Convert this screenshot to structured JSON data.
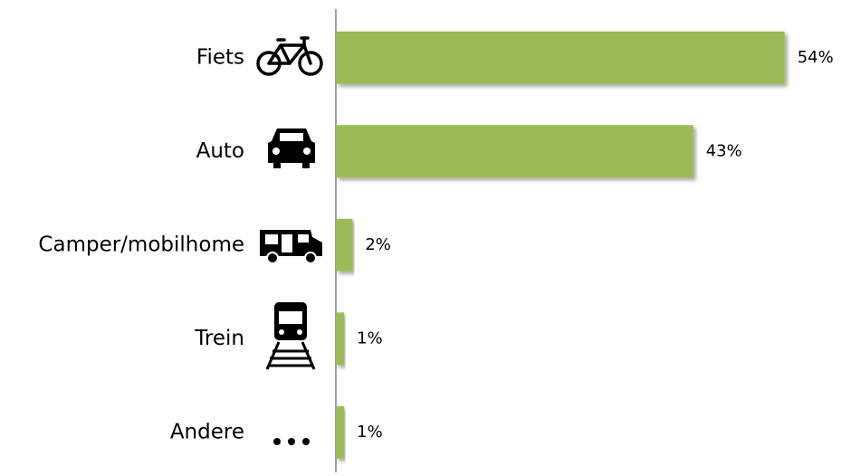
{
  "chart_data": {
    "type": "bar",
    "orientation": "horizontal",
    "categories": [
      "Fiets",
      "Auto",
      "Camper/mobilhome",
      "Trein",
      "Andere"
    ],
    "values": [
      54,
      43,
      2,
      1,
      1
    ],
    "value_labels": [
      "54%",
      "43%",
      "2%",
      "1%",
      "1%"
    ],
    "color": "#9bbb59"
  }
}
